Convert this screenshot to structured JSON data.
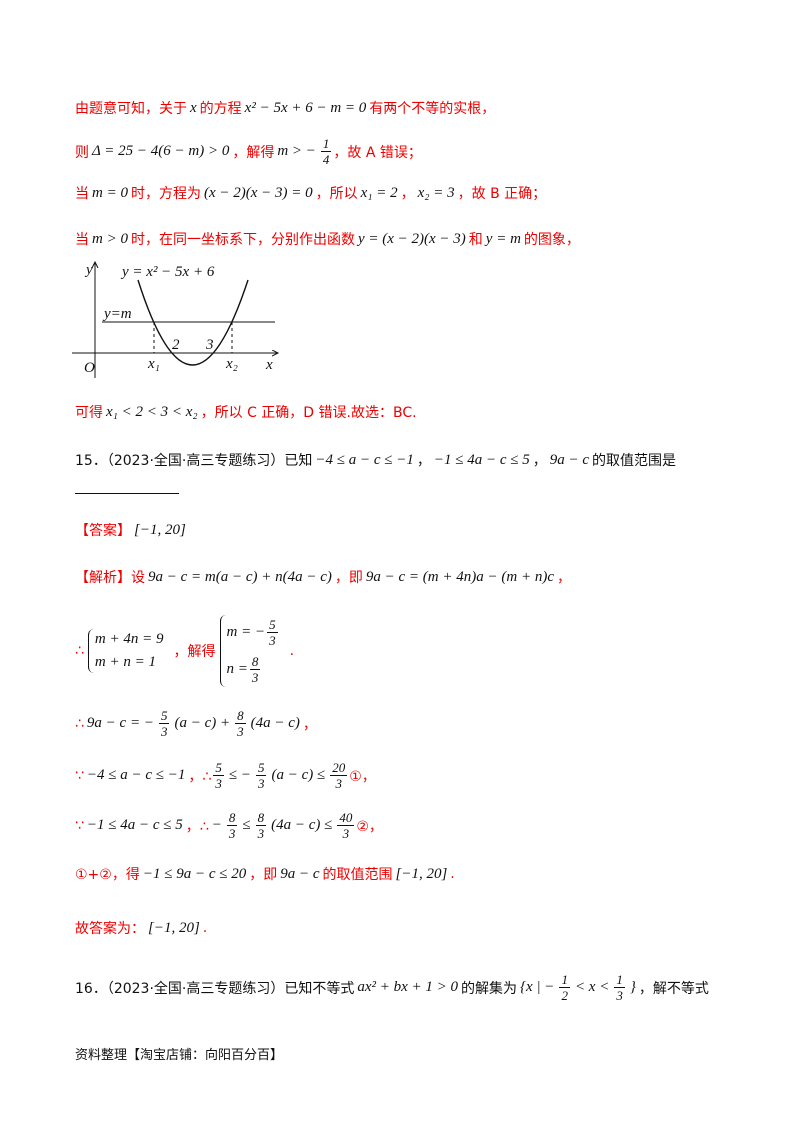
{
  "lines": [
    [
      "由题意可知，关于",
      "x",
      "的方程",
      "x² − 5x + 6 − m = 0",
      "有两个不等的实根，"
    ],
    [
      "则",
      "Δ = 25 − 4(6 − m) > 0",
      "，解得",
      "m > −",
      "1",
      "4",
      "，故 A 错误；"
    ],
    [
      "当",
      "m = 0",
      "时，方程为",
      "(x − 2)(x − 3) = 0",
      "，所以",
      "x₁ = 2",
      "，",
      "x₂ = 3",
      "，故 B 正确；"
    ],
    [
      "当",
      "m > 0",
      "时，在同一坐标系下，分别作出函数",
      "y = (x − 2)(x − 3)",
      "和",
      "y = m",
      "的图象，"
    ],
    [
      "可得",
      "x₁ < 2 < 3 < x₂",
      "，所以 C 正确，D 错误.故选：BC."
    ],
    [
      "15．（2023·全国·高三专题练习）已知",
      "−4 ≤ a − c ≤ −1",
      "，",
      "−1 ≤ 4a − c ≤ 5",
      "，",
      "9a − c",
      "的取值范围是"
    ],
    [
      "【答案】",
      "[−1, 20]"
    ],
    [
      "【解析】设",
      "9a − c = m(a − c) + n(4a − c)",
      "，即",
      "9a − c = (m + 4n)a − (m + n)c",
      "，"
    ],
    [
      "∴",
      "m + 4n = 9",
      "m + n = 1",
      "，解得",
      "m = −",
      "5",
      "3",
      "n = ",
      "8",
      "3",
      "."
    ],
    [
      "∴",
      "9a − c = −",
      "5",
      "3",
      "(a − c) + ",
      "8",
      "3",
      "(4a − c)",
      "，"
    ],
    [
      "∵",
      "−4 ≤ a − c ≤ −1",
      "，∴",
      "5",
      "3",
      " ≤ −",
      "5",
      "3",
      "(a − c) ≤ ",
      "20",
      "3",
      "①，"
    ],
    [
      "∵",
      "−1 ≤ 4a − c ≤ 5",
      "，∴",
      "−",
      "8",
      "3",
      " ≤ ",
      "8",
      "3",
      "(4a − c) ≤ ",
      "40",
      "3",
      "②，"
    ],
    [
      "①+②，得",
      "−1 ≤ 9a − c ≤ 20",
      "，即",
      "9a − c",
      "的取值范围",
      "[−1, 20]",
      "."
    ],
    [
      "故答案为：",
      "[−1, 20]",
      "."
    ],
    [
      "16．（2023·全国·高三专题练习）已知不等式",
      "ax² + bx + 1 > 0",
      "的解集为",
      "{x | −",
      "1",
      "2",
      " < x < ",
      "1",
      "3",
      "}",
      "，解不等式"
    ]
  ],
  "graph": {
    "y_axis": "y",
    "curve_label": "y = x² − 5x + 6",
    "line_label": "y=m",
    "origin": "O",
    "x1": "x₁",
    "two": "2",
    "three": "3",
    "x2": "x₂",
    "x_axis": "x"
  },
  "footer": "资料整理【淘宝店铺：向阳百分百】"
}
